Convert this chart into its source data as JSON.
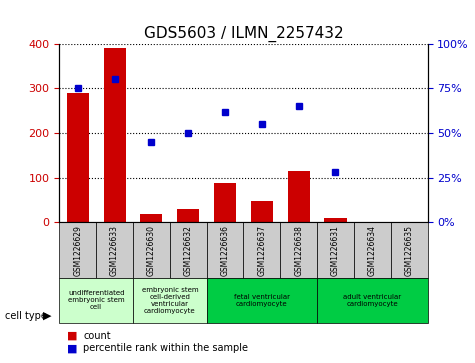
{
  "title": "GDS5603 / ILMN_2257432",
  "samples": [
    "GSM1226629",
    "GSM1226633",
    "GSM1226630",
    "GSM1226632",
    "GSM1226636",
    "GSM1226637",
    "GSM1226638",
    "GSM1226631",
    "GSM1226634",
    "GSM1226635"
  ],
  "counts": [
    290,
    390,
    20,
    30,
    88,
    48,
    115,
    10,
    2,
    2
  ],
  "percentiles": [
    75,
    80,
    45,
    50,
    62,
    55,
    65,
    28,
    null,
    null
  ],
  "ylim_left": [
    0,
    400
  ],
  "ylim_right": [
    0,
    100
  ],
  "yticks_left": [
    0,
    100,
    200,
    300,
    400
  ],
  "yticks_right": [
    0,
    25,
    50,
    75,
    100
  ],
  "cell_types": [
    {
      "label": "undifferentiated\nembryonic stem\ncell",
      "color": "#ccffcc",
      "span": [
        0,
        2
      ]
    },
    {
      "label": "embryonic stem\ncell-derived\nventricular\ncardiomyocyte",
      "color": "#ccffcc",
      "span": [
        2,
        4
      ]
    },
    {
      "label": "fetal ventricular\ncardiomyocyte",
      "color": "#00cc44",
      "span": [
        4,
        7
      ]
    },
    {
      "label": "adult ventricular\ncardiomyocyte",
      "color": "#00cc44",
      "span": [
        7,
        10
      ]
    }
  ],
  "bar_color": "#cc0000",
  "dot_color": "#0000cc",
  "grid_color": "#000000",
  "tick_color_left": "#cc0000",
  "tick_color_right": "#0000cc",
  "sample_bg_color": "#cccccc",
  "legend_items": [
    {
      "label": "count",
      "color": "#cc0000",
      "marker": "s"
    },
    {
      "label": "percentile rank within the sample",
      "color": "#0000cc",
      "marker": "s"
    }
  ]
}
